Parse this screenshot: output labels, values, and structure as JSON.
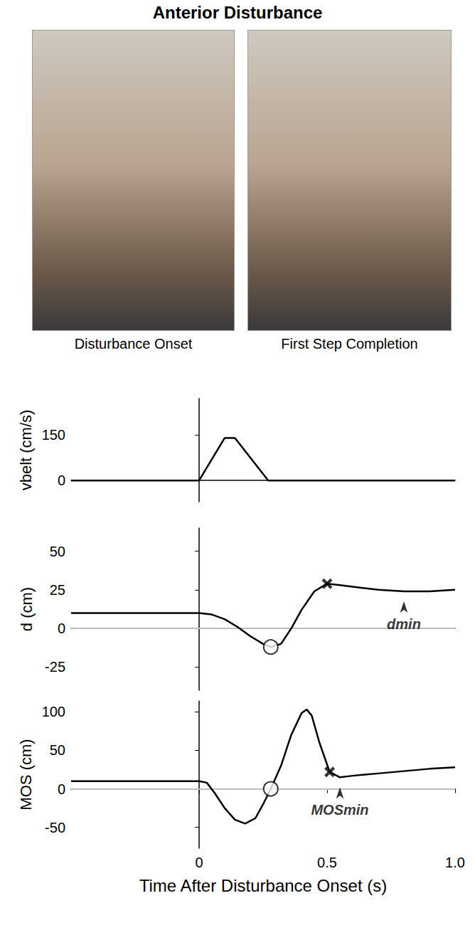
{
  "title": "Anterior Disturbance",
  "photos": [
    {
      "caption": "Disturbance Onset"
    },
    {
      "caption": "First Step Completion"
    }
  ],
  "chart_data": [
    {
      "type": "line",
      "y_label": "vbelt (cm/s)",
      "color": "#000000",
      "x": [
        -0.5,
        0,
        0.1,
        0.14,
        0.27,
        1.0
      ],
      "values": [
        0,
        0,
        140,
        140,
        0,
        0
      ],
      "xlim": [
        -0.5,
        1.0
      ],
      "ylim": [
        -70,
        270
      ],
      "yticks": [
        0,
        150
      ],
      "tick_labels": "y"
    },
    {
      "type": "line",
      "y_label": "d (cm)",
      "color": "#000000",
      "x": [
        -0.5,
        0,
        0.05,
        0.1,
        0.15,
        0.2,
        0.25,
        0.28,
        0.32,
        0.36,
        0.4,
        0.45,
        0.5,
        0.55,
        0.6,
        0.7,
        0.8,
        0.9,
        1.0
      ],
      "values": [
        10,
        10,
        9,
        6,
        1,
        -5,
        -10,
        -12,
        -10,
        0,
        12,
        24,
        29,
        28,
        27,
        25,
        24,
        24,
        25
      ],
      "xlim": [
        -0.5,
        1.0
      ],
      "ylim": [
        -40,
        65
      ],
      "yticks": [
        -25,
        0,
        25,
        50
      ],
      "hline": 0,
      "markers": [
        {
          "x": 0.28,
          "y": -12,
          "marker": "circle"
        },
        {
          "x": 0.5,
          "y": 29,
          "marker": "x"
        }
      ],
      "annotations": [
        {
          "text": "dmin",
          "x": 0.8,
          "y": 24
        }
      ],
      "tick_labels": "y"
    },
    {
      "type": "line",
      "y_label": "MOS (cm)",
      "x_label": "Time After Disturbance Onset (s)",
      "color": "#000000",
      "x": [
        -0.5,
        0,
        0.03,
        0.06,
        0.1,
        0.14,
        0.18,
        0.22,
        0.25,
        0.28,
        0.32,
        0.36,
        0.4,
        0.42,
        0.44,
        0.47,
        0.51,
        0.55,
        0.6,
        0.7,
        0.8,
        0.9,
        1.0
      ],
      "values": [
        10,
        10,
        8,
        -5,
        -25,
        -40,
        -45,
        -38,
        -20,
        0,
        30,
        70,
        98,
        103,
        95,
        60,
        22,
        15,
        17,
        20,
        23,
        26,
        28
      ],
      "xlim": [
        -0.5,
        1.0
      ],
      "ylim": [
        -77,
        114
      ],
      "yticks": [
        -50,
        0,
        50,
        100
      ],
      "xticks": [
        0,
        0.5,
        {
          "value": 1,
          "label": "1.0"
        }
      ],
      "hline": 0,
      "markers": [
        {
          "x": 0.28,
          "y": 0,
          "marker": "circle"
        },
        {
          "x": 0.51,
          "y": 22,
          "marker": "x"
        }
      ],
      "annotations": [
        {
          "text": "MOSmin",
          "x": 0.55,
          "y": 15
        }
      ]
    }
  ]
}
